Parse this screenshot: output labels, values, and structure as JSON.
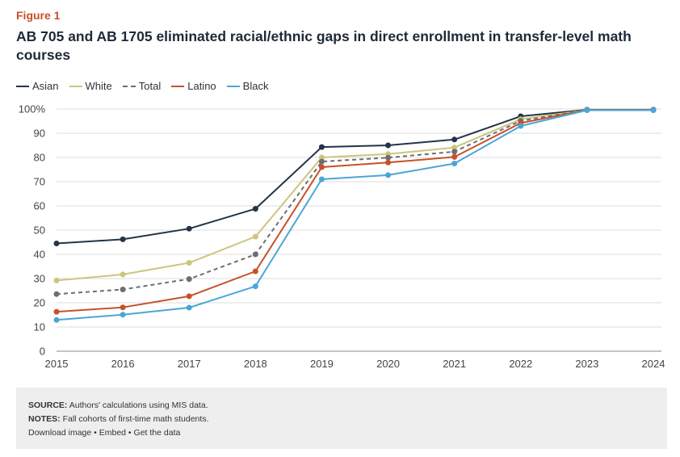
{
  "figure_label": "Figure 1",
  "title": "AB 705 and AB 1705 eliminated racial/ethnic gaps in direct enrollment in transfer-level math courses",
  "chart_data": {
    "type": "line",
    "title": "AB 705 and AB 1705 eliminated racial/ethnic gaps in direct enrollment in transfer-level math courses",
    "xlabel": "",
    "ylabel": "",
    "x": [
      "2015",
      "2016",
      "2017",
      "2018",
      "2019",
      "2020",
      "2021",
      "2022",
      "2023",
      "2024"
    ],
    "ylim": [
      0,
      100
    ],
    "yticks": [
      0,
      10,
      20,
      30,
      40,
      50,
      60,
      70,
      80,
      90,
      100
    ],
    "ytick_labels": [
      "0",
      "10",
      "20",
      "30",
      "40",
      "50",
      "60",
      "70",
      "80",
      "90",
      "100%"
    ],
    "grid": true,
    "legend_position": "top-left",
    "series": [
      {
        "name": "Asian",
        "color": "#243447",
        "dash": false,
        "values": [
          44.5,
          46.2,
          50.6,
          58.8,
          84.3,
          85.0,
          87.4,
          97.0,
          99.7,
          99.7
        ]
      },
      {
        "name": "White",
        "color": "#cdc57e",
        "dash": false,
        "values": [
          29.2,
          31.7,
          36.5,
          47.3,
          80.0,
          81.4,
          84.1,
          95.8,
          99.6,
          99.6
        ]
      },
      {
        "name": "Total",
        "color": "#6e6e6e",
        "dash": true,
        "values": [
          23.6,
          25.5,
          29.8,
          40.0,
          78.3,
          79.9,
          82.4,
          95.1,
          99.6,
          99.6
        ]
      },
      {
        "name": "Latino",
        "color": "#c8502a",
        "dash": false,
        "values": [
          16.3,
          18.1,
          22.7,
          33.0,
          76.0,
          77.9,
          80.2,
          94.2,
          99.6,
          99.6
        ]
      },
      {
        "name": "Black",
        "color": "#4aa6d6",
        "dash": false,
        "values": [
          12.9,
          15.1,
          18.0,
          26.8,
          71.0,
          72.7,
          77.5,
          93.0,
          99.5,
          99.5
        ]
      }
    ]
  },
  "footer": {
    "source_label": "SOURCE:",
    "source_text": " Authors' calculations using MIS data.",
    "notes_label": "NOTES:",
    "notes_text": " Fall cohorts of first-time math students.",
    "download": "Download image",
    "embed": "Embed",
    "get_data": "Get the data",
    "separator": " • "
  }
}
